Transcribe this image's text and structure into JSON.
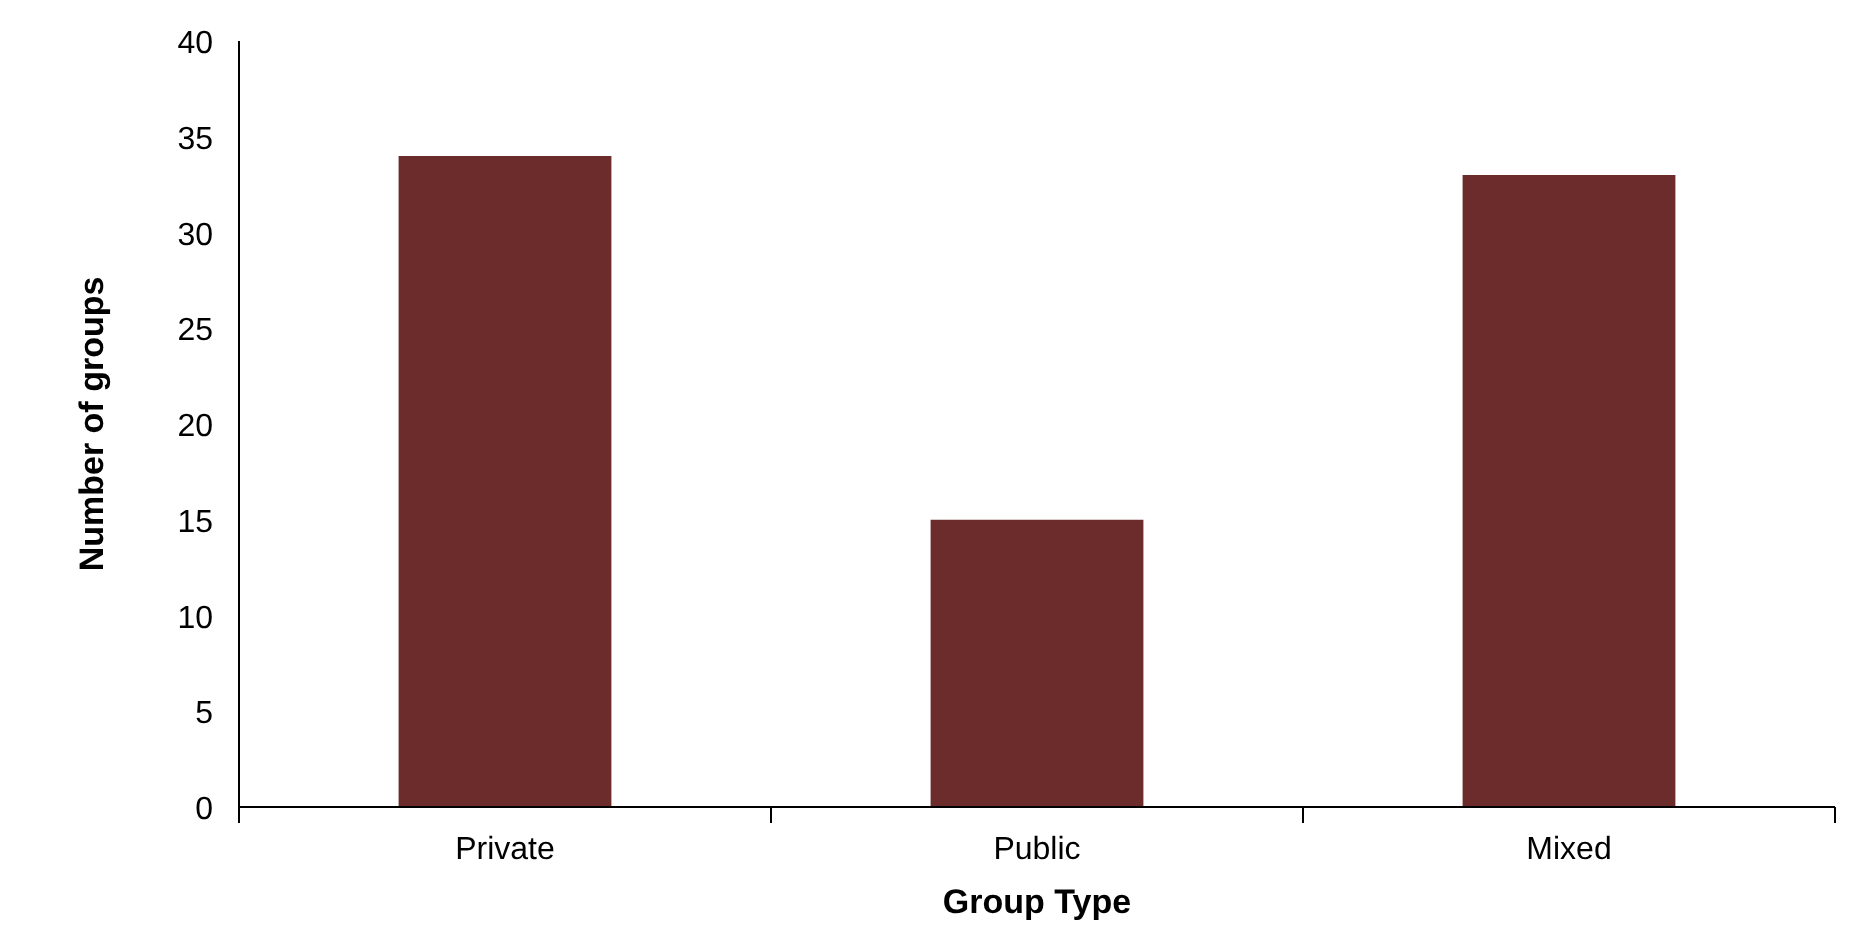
{
  "chart_data": {
    "type": "bar",
    "xlabel": "Group Type",
    "ylabel": "Number of groups",
    "categories": [
      "Private",
      "Public",
      "Mixed"
    ],
    "values": [
      34,
      15,
      33
    ],
    "color": "#6d2c2c",
    "ylim": [
      0,
      40
    ],
    "yticks": [
      0,
      5,
      10,
      15,
      20,
      25,
      30,
      35,
      40
    ],
    "grid": false
  }
}
